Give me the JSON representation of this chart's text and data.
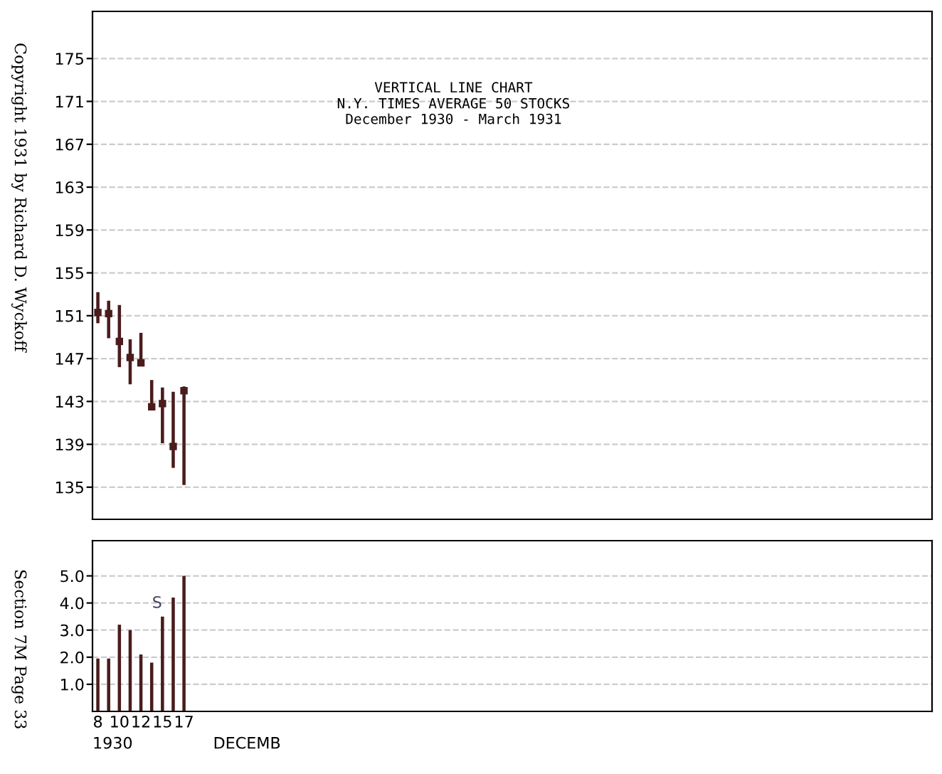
{
  "chart_data": [
    {
      "type": "bar",
      "title": "VERTICAL LINE CHART",
      "subtitle": "N.Y. TIMES AVERAGE 50 STOCKS\nDecember 1930 - March 1931",
      "categories": [
        null,
        null,
        null,
        null,
        null,
        null,
        null,
        null,
        null,
        null,
        null,
        null,
        null,
        null,
        null,
        null,
        null,
        null,
        null,
        null,
        null,
        null,
        null,
        null,
        null,
        null,
        null,
        null,
        null,
        null,
        null,
        null,
        null,
        null,
        null,
        null,
        null,
        null,
        null,
        null,
        null,
        null,
        null,
        null,
        null,
        null,
        null,
        null,
        null,
        null,
        null,
        null,
        null,
        null,
        null,
        null,
        null,
        null,
        null,
        null,
        null,
        null,
        null,
        null,
        null,
        null,
        null,
        null,
        null,
        null,
        null,
        null,
        null,
        null,
        null,
        null,
        null,
        null
      ],
      "series": [
        {
          "type": "bar",
          "color": "#4a1c1c",
          "base": [
            150.3,
            148.9,
            146.2,
            144.6,
            146.4,
            142.4,
            139.1,
            136.8,
            135.2,
            null,
            null,
            null,
            null,
            null,
            null,
            null,
            null,
            null,
            null,
            null,
            null,
            null,
            null,
            null,
            null,
            null,
            null,
            null,
            null,
            null,
            null,
            null,
            null,
            null,
            null,
            null,
            null,
            null,
            null,
            null,
            null,
            null,
            null,
            null,
            null,
            null,
            null,
            null,
            null,
            null,
            null,
            null,
            null,
            null,
            null,
            null,
            null,
            null,
            null,
            null,
            null,
            null,
            null,
            null,
            null,
            null,
            null,
            null,
            null,
            null,
            null,
            null,
            null,
            null,
            null,
            null,
            null,
            null
          ],
          "values": [
            2.9,
            3.5,
            5.8,
            4.2,
            3.0,
            2.6,
            5.2,
            7.1,
            9.2,
            null,
            null,
            null,
            null,
            null,
            null,
            null,
            null,
            null,
            null,
            null,
            null,
            null,
            null,
            null,
            null,
            null,
            null,
            null,
            null,
            null,
            null,
            null,
            null,
            null,
            null,
            null,
            null,
            null,
            null,
            null,
            null,
            null,
            null,
            null,
            null,
            null,
            null,
            null,
            null,
            null,
            null,
            null,
            null,
            null,
            null,
            null,
            null,
            null,
            null,
            null,
            null,
            null,
            null,
            null,
            null,
            null,
            null,
            null,
            null,
            null,
            null,
            null,
            null,
            null,
            null,
            null,
            null,
            null
          ]
        },
        {
          "type": "scatter",
          "color": "#4a1c1c",
          "marker": "square",
          "values": [
            151.3,
            151.2,
            148.6,
            147.1,
            146.6,
            142.5,
            142.8,
            138.8,
            144.0,
            null,
            null,
            null,
            null,
            null,
            null,
            null,
            null,
            null,
            null,
            null,
            null,
            null,
            null,
            null,
            null,
            null,
            null,
            null,
            null,
            null,
            null,
            null,
            null,
            null,
            null,
            null,
            null,
            null,
            null,
            null,
            null,
            null,
            null,
            null,
            null,
            null,
            null,
            null,
            null,
            null,
            null,
            null,
            null,
            null,
            null,
            null,
            null,
            null,
            null,
            null,
            null,
            null,
            null,
            null,
            null,
            null,
            null,
            null,
            null,
            null,
            null,
            null,
            null,
            null,
            null,
            null,
            null,
            null
          ]
        }
      ],
      "ylim": [
        132,
        179.4
      ],
      "yticks": [
        135,
        139,
        143,
        147,
        151,
        155,
        159,
        163,
        167,
        171,
        175
      ],
      "grid": true,
      "tick_labels": "y",
      "annotations": [
        "Copyright 1931 by Richard D. Wyckoff"
      ]
    },
    {
      "type": "bar",
      "xlabel": "1930                DECEMB",
      "categories": [
        "8",
        null,
        "10",
        null,
        "12",
        null,
        "15",
        null,
        "17",
        null,
        null,
        null,
        null,
        null,
        null,
        null,
        null,
        null,
        null,
        null,
        null,
        null,
        null,
        null,
        null,
        null,
        null,
        null,
        null,
        null,
        null,
        null,
        null,
        null,
        null,
        null,
        null,
        null,
        null,
        null,
        null,
        null,
        null,
        null,
        null,
        null,
        null,
        null,
        null,
        null,
        null,
        null,
        null,
        null,
        null,
        null,
        null,
        null,
        null,
        null,
        null,
        null,
        null,
        null,
        null,
        null,
        null,
        null,
        null,
        null,
        null,
        null,
        null,
        null,
        null,
        null,
        null,
        null
      ],
      "values": [
        1.95,
        1.95,
        3.2,
        3.0,
        2.1,
        1.8,
        3.5,
        4.2,
        5.0,
        null,
        null,
        null,
        null,
        null,
        null,
        null,
        null,
        null,
        null,
        null,
        null,
        null,
        null,
        null,
        null,
        null,
        null,
        null,
        null,
        null,
        null,
        null,
        null,
        null,
        null,
        null,
        null,
        null,
        null,
        null,
        null,
        null,
        null,
        null,
        null,
        null,
        null,
        null,
        null,
        null,
        null,
        null,
        null,
        null,
        null,
        null,
        null,
        null,
        null,
        null,
        null,
        null,
        null,
        null,
        null,
        null,
        null,
        null,
        null,
        null,
        null,
        null,
        null,
        null,
        null,
        null,
        null,
        null
      ],
      "color": "#4a1c1c",
      "ylim": [
        0,
        6.3
      ],
      "yticks": [
        {
          "value": 1,
          "label": "1.0"
        },
        {
          "value": 2,
          "label": "2.0"
        },
        {
          "value": 3,
          "label": "3.0"
        },
        {
          "value": 4,
          "label": "4.0"
        },
        {
          "value": 5,
          "label": "5.0"
        }
      ],
      "grid": "y",
      "annotations": [
        {
          "text": "S",
          "x": "15",
          "y": 3.7
        },
        "Section 7M Page 33"
      ]
    }
  ]
}
